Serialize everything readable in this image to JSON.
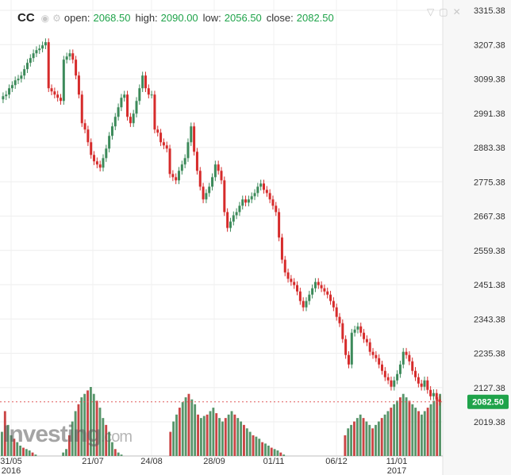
{
  "header": {
    "symbol": "CC",
    "open_label": "open:",
    "open_value": "2068.50",
    "high_label": "high:",
    "high_value": "2090.00",
    "low_label": "low:",
    "low_value": "2056.50",
    "close_label": "close:",
    "close_value": "2082.50"
  },
  "watermark": {
    "brand": "Investing",
    "suffix": ".com"
  },
  "colors": {
    "up": "#3c8a5a",
    "down": "#d62b2b",
    "neutral": "#444444",
    "last_price_bg": "#1fa34a",
    "last_price_line": "#e05a5a"
  },
  "chart_data": {
    "type": "candlestick",
    "y_ticks": [
      "3315.38",
      "3207.38",
      "3099.38",
      "2991.38",
      "2883.38",
      "2775.38",
      "2667.38",
      "2559.38",
      "2451.38",
      "2343.38",
      "2235.38",
      "2127.38",
      "2019.38"
    ],
    "x_ticks": [
      "31/05",
      "21/07",
      "24/08",
      "28/09",
      "01/11",
      "06/12",
      "11/01"
    ],
    "x_year_labels": [
      "2016",
      "2017"
    ],
    "last_price": "2082.50",
    "ylim": [
      1960,
      3330
    ],
    "grid": true,
    "close_series": [
      3045,
      3050,
      3070,
      3080,
      3095,
      3100,
      3110,
      3130,
      3150,
      3165,
      3180,
      3190,
      3195,
      3205,
      3215,
      3070,
      3060,
      3050,
      3040,
      3030,
      3160,
      3170,
      3180,
      3160,
      3110,
      3050,
      2960,
      2940,
      2900,
      2860,
      2840,
      2830,
      2820,
      2850,
      2880,
      2920,
      2950,
      2980,
      3010,
      3040,
      3050,
      2980,
      2960,
      2990,
      3030,
      3070,
      3110,
      3070,
      3050,
      3050,
      2940,
      2930,
      2900,
      2890,
      2880,
      2800,
      2790,
      2780,
      2810,
      2830,
      2850,
      2900,
      2950,
      2870,
      2810,
      2760,
      2720,
      2740,
      2760,
      2790,
      2830,
      2810,
      2780,
      2680,
      2630,
      2650,
      2670,
      2680,
      2700,
      2720,
      2710,
      2720,
      2730,
      2740,
      2760,
      2770,
      2750,
      2740,
      2720,
      2700,
      2680,
      2600,
      2530,
      2490,
      2470,
      2460,
      2450,
      2430,
      2400,
      2380,
      2400,
      2420,
      2440,
      2460,
      2450,
      2440,
      2430,
      2420,
      2400,
      2380,
      2350,
      2330,
      2280,
      2230,
      2200,
      2300,
      2310,
      2320,
      2300,
      2280,
      2270,
      2240,
      2230,
      2220,
      2200,
      2180,
      2160,
      2150,
      2130,
      2150,
      2170,
      2200,
      2240,
      2230,
      2210,
      2180,
      2160,
      2140,
      2130,
      2150,
      2120,
      2100,
      2110,
      2090,
      2082.5
    ],
    "volume_relative": [
      0.35,
      0.65,
      0.45,
      0.3,
      0.25,
      0.2,
      0.15,
      0.12,
      0.1,
      0.08,
      0.05,
      0.02,
      0.0,
      0.0,
      0.0,
      0.0,
      0.0,
      0.0,
      0.0,
      0.0,
      0.05,
      0.1,
      0.3,
      0.5,
      0.65,
      0.75,
      0.85,
      0.9,
      0.95,
      1.0,
      0.9,
      0.8,
      0.7,
      0.55,
      0.45,
      0.35,
      0.2,
      0.1,
      0.05,
      0.02,
      0.0,
      0.0,
      0.0,
      0.0,
      0.0,
      0.0,
      0.0,
      0.0,
      0.0,
      0.0,
      0.0,
      0.0,
      0.0,
      0.0,
      0.0,
      0.35,
      0.5,
      0.6,
      0.7,
      0.78,
      0.85,
      0.9,
      0.82,
      0.75,
      0.6,
      0.55,
      0.58,
      0.6,
      0.65,
      0.7,
      0.62,
      0.55,
      0.5,
      0.55,
      0.6,
      0.65,
      0.6,
      0.55,
      0.5,
      0.45,
      0.4,
      0.35,
      0.3,
      0.28,
      0.25,
      0.2,
      0.18,
      0.15,
      0.12,
      0.1,
      0.08,
      0.05,
      0.02,
      0.0,
      0.0,
      0.0,
      0.0,
      0.0,
      0.0,
      0.0,
      0.0,
      0.0,
      0.0,
      0.0,
      0.0,
      0.0,
      0.0,
      0.0,
      0.0,
      0.0,
      0.0,
      0.0,
      0.3,
      0.4,
      0.45,
      0.5,
      0.55,
      0.6,
      0.55,
      0.5,
      0.45,
      0.4,
      0.45,
      0.5,
      0.55,
      0.6,
      0.65,
      0.7,
      0.75,
      0.8,
      0.85,
      0.9,
      0.85,
      0.8,
      0.75,
      0.7,
      0.65,
      0.6,
      0.65,
      0.7,
      0.75,
      0.8,
      0.85,
      0.9
    ]
  }
}
